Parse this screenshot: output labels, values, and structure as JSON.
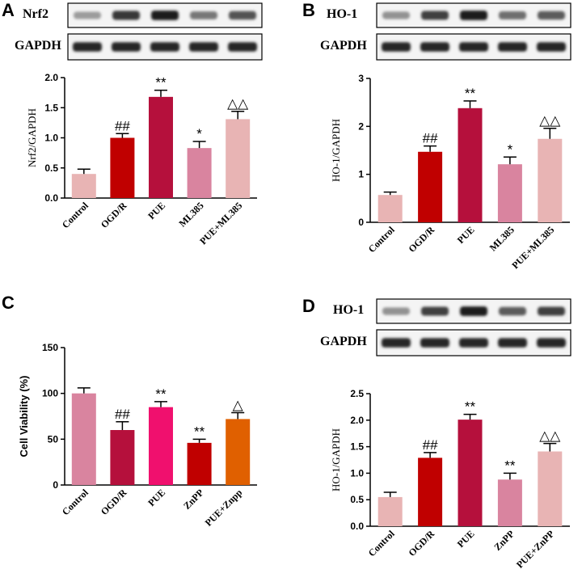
{
  "panels": [
    {
      "letter": "A",
      "blot_labels": [
        "Nrf2",
        "GAPDH"
      ],
      "colors": [
        "#e8b4b4",
        "#c00000",
        "#b5103c",
        "#d9849f",
        "#e8b4b4"
      ]
    },
    {
      "letter": "B",
      "blot_labels": [
        "HO-1",
        "GAPDH"
      ],
      "colors": [
        "#e8b4b4",
        "#c00000",
        "#b5103c",
        "#d9849f",
        "#e8b4b4"
      ]
    },
    {
      "letter": "C",
      "blot_labels": [],
      "colors": [
        "#d9849f",
        "#b5103c",
        "#f0106e",
        "#c00000",
        "#e06000"
      ]
    },
    {
      "letter": "D",
      "blot_labels": [
        "HO-1",
        "GAPDH"
      ],
      "colors": [
        "#e8b4b4",
        "#c00000",
        "#b5103c",
        "#d9849f",
        "#e8b4b4"
      ]
    }
  ],
  "chart_data": [
    {
      "type": "bar",
      "categories": [
        "Control",
        "OGD/R",
        "PUE",
        "ML385",
        "PUE+ML385"
      ],
      "values": [
        0.4,
        1.0,
        1.68,
        0.83,
        1.31
      ],
      "errors": [
        0.08,
        0.07,
        0.11,
        0.11,
        0.13
      ],
      "significance": [
        "",
        "##",
        "**",
        "*",
        "△△"
      ],
      "ylabel": "Nrf2/GAPDH",
      "ylim": [
        0,
        2.0
      ],
      "yticks": [
        "0.0",
        "0.5",
        "1.0",
        "1.5",
        "2.0"
      ]
    },
    {
      "type": "bar",
      "categories": [
        "Control",
        "OGD/R",
        "PUE",
        "ML385",
        "PUE+ML385"
      ],
      "values": [
        0.57,
        1.47,
        2.38,
        1.21,
        1.74
      ],
      "errors": [
        0.06,
        0.12,
        0.15,
        0.15,
        0.22
      ],
      "significance": [
        "",
        "##",
        "**",
        "*",
        "△△"
      ],
      "ylabel": "HO-1/GAPDH",
      "ylim": [
        0,
        3
      ],
      "yticks": [
        "0",
        "1",
        "2",
        "3"
      ]
    },
    {
      "type": "bar",
      "categories": [
        "Control",
        "OGD/R",
        "PUE",
        "ZnPP",
        "PUE+Znpp"
      ],
      "values": [
        100,
        60,
        85,
        46,
        72
      ],
      "errors": [
        6,
        9,
        6,
        4,
        7
      ],
      "significance": [
        "",
        "##",
        "**",
        "**",
        "△"
      ],
      "ylabel": "Cell Viability (%)",
      "ylim": [
        0,
        150
      ],
      "yticks": [
        "0",
        "50",
        "100",
        "150"
      ]
    },
    {
      "type": "bar",
      "categories": [
        "Control",
        "OGD/R",
        "PUE",
        "ZnPP",
        "PUE+ZnPP"
      ],
      "values": [
        0.55,
        1.29,
        2.01,
        0.88,
        1.41
      ],
      "errors": [
        0.09,
        0.1,
        0.1,
        0.12,
        0.15
      ],
      "significance": [
        "",
        "##",
        "**",
        "**",
        "△△"
      ],
      "ylabel": "HO-1/GAPDH",
      "ylim": [
        0,
        2.5
      ],
      "yticks": [
        "0.0",
        "0.5",
        "1.0",
        "1.5",
        "2.0",
        "2.5"
      ]
    }
  ]
}
